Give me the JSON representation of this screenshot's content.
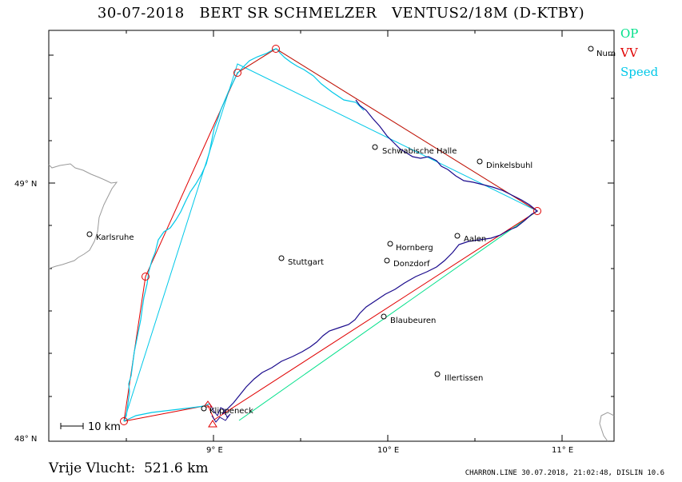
{
  "header": {
    "title": "30-07-2018   BERT SR SCHMELZER   VENTUS2/18M (D-KTBY)"
  },
  "legend": {
    "op": "OP",
    "vv": "VV",
    "speed": "Speed"
  },
  "colors": {
    "op": "#00e08a",
    "vv": "#e00000",
    "speed": "#00c8e8",
    "track": "#1a0a8c",
    "border": "#9a9a9a"
  },
  "map": {
    "lat_labels": [
      "49° N",
      "48° N"
    ],
    "lon_labels": [
      "9° E",
      "10° E",
      "11° E"
    ],
    "scale_label": "10  km",
    "cities": [
      {
        "name": "Nurn"
      },
      {
        "name": "Schwabische Halle"
      },
      {
        "name": "Dinkelsbuhl"
      },
      {
        "name": "Karlsruhe"
      },
      {
        "name": "Hornberg"
      },
      {
        "name": "Aalen"
      },
      {
        "name": "Stuttgart"
      },
      {
        "name": "Donzdorf"
      },
      {
        "name": "Blaubeuren"
      },
      {
        "name": "Illertissen"
      },
      {
        "name": "Klippeneck"
      }
    ]
  },
  "footer": {
    "distance": "Vrije Vlucht:  521.6 km",
    "credit": "CHARRON.LINE 30.07.2018, 21:02:48, DISLIN 10.6"
  }
}
